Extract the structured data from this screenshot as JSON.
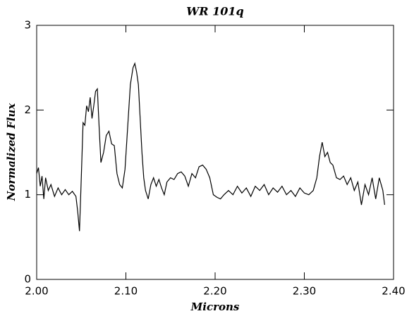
{
  "chart_data": {
    "type": "line",
    "title": "WR 101q",
    "x_label": "Microns",
    "y_label": "Normalized Flux",
    "x": [
      2.0,
      2.002,
      2.004,
      2.006,
      2.008,
      2.01,
      2.013,
      2.016,
      2.02,
      2.024,
      2.028,
      2.032,
      2.036,
      2.04,
      2.044,
      2.046,
      2.048,
      2.05,
      2.052,
      2.054,
      2.056,
      2.058,
      2.06,
      2.062,
      2.064,
      2.066,
      2.068,
      2.07,
      2.072,
      2.075,
      2.078,
      2.081,
      2.084,
      2.087,
      2.09,
      2.093,
      2.096,
      2.099,
      2.102,
      2.105,
      2.108,
      2.11,
      2.112,
      2.114,
      2.116,
      2.118,
      2.12,
      2.122,
      2.125,
      2.128,
      2.131,
      2.134,
      2.137,
      2.14,
      2.143,
      2.146,
      2.15,
      2.154,
      2.158,
      2.162,
      2.166,
      2.17,
      2.174,
      2.178,
      2.182,
      2.186,
      2.19,
      2.194,
      2.198,
      2.202,
      2.206,
      2.21,
      2.215,
      2.22,
      2.225,
      2.23,
      2.235,
      2.24,
      2.245,
      2.25,
      2.255,
      2.26,
      2.265,
      2.27,
      2.275,
      2.28,
      2.285,
      2.29,
      2.295,
      2.3,
      2.305,
      2.31,
      2.314,
      2.317,
      2.32,
      2.323,
      2.326,
      2.329,
      2.332,
      2.336,
      2.34,
      2.344,
      2.348,
      2.352,
      2.356,
      2.36,
      2.364,
      2.368,
      2.372,
      2.376,
      2.38,
      2.384,
      2.388,
      2.39
    ],
    "values": [
      1.25,
      1.32,
      1.1,
      1.22,
      0.95,
      1.2,
      1.05,
      1.12,
      0.98,
      1.08,
      1.0,
      1.06,
      1.0,
      1.04,
      0.98,
      0.8,
      0.57,
      1.2,
      1.85,
      1.82,
      2.05,
      1.98,
      2.15,
      1.9,
      2.05,
      2.22,
      2.25,
      1.8,
      1.38,
      1.5,
      1.7,
      1.75,
      1.6,
      1.58,
      1.25,
      1.12,
      1.08,
      1.3,
      1.8,
      2.3,
      2.5,
      2.55,
      2.45,
      2.3,
      1.9,
      1.5,
      1.2,
      1.05,
      0.95,
      1.12,
      1.2,
      1.1,
      1.18,
      1.08,
      1.0,
      1.15,
      1.2,
      1.18,
      1.25,
      1.27,
      1.22,
      1.1,
      1.25,
      1.2,
      1.33,
      1.35,
      1.3,
      1.2,
      1.0,
      0.97,
      0.95,
      1.0,
      1.05,
      1.0,
      1.1,
      1.02,
      1.08,
      0.98,
      1.1,
      1.05,
      1.12,
      1.0,
      1.08,
      1.03,
      1.1,
      1.0,
      1.05,
      0.98,
      1.08,
      1.02,
      1.0,
      1.05,
      1.2,
      1.45,
      1.62,
      1.45,
      1.5,
      1.38,
      1.35,
      1.2,
      1.18,
      1.22,
      1.12,
      1.2,
      1.05,
      1.15,
      0.88,
      1.12,
      1.0,
      1.2,
      0.95,
      1.2,
      1.05,
      0.88
    ],
    "color": "#000000",
    "xlim": [
      2.0,
      2.4
    ],
    "ylim": [
      0,
      3
    ],
    "xticks": [
      {
        "value": 2.0,
        "label": "2.00"
      },
      {
        "value": 2.1,
        "label": "2.10"
      },
      {
        "value": 2.2,
        "label": "2.20"
      },
      {
        "value": 2.3,
        "label": "2.30"
      },
      {
        "value": 2.4,
        "label": "2.40"
      }
    ],
    "yticks": [
      0,
      1,
      2,
      3
    ]
  }
}
